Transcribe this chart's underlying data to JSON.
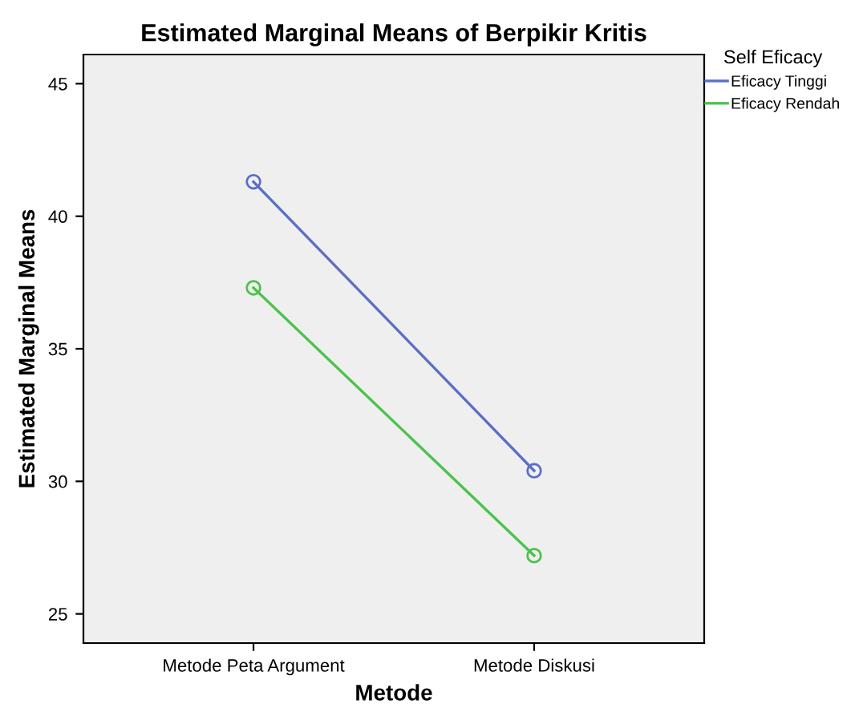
{
  "chart_data": {
    "type": "line",
    "title": "Estimated Marginal Means of Berpikir Kritis",
    "xlabel": "Metode",
    "ylabel": "Estimated Marginal Means",
    "legend_title": "Self Eficacy",
    "categories": [
      "Metode Peta Argument",
      "Metode Diskusi"
    ],
    "series": [
      {
        "name": "Eficacy Tinggi",
        "color": "#5b6fc4",
        "values": [
          41.3,
          30.4
        ]
      },
      {
        "name": "Eficacy Rendah",
        "color": "#4cc24c",
        "values": [
          37.3,
          27.2
        ]
      }
    ],
    "ylim": [
      23.9,
      46.1
    ],
    "yticks": [
      25,
      30,
      35,
      40,
      45
    ],
    "grid": false,
    "legend": "top right",
    "marker": "circle",
    "line_style": "solid"
  }
}
